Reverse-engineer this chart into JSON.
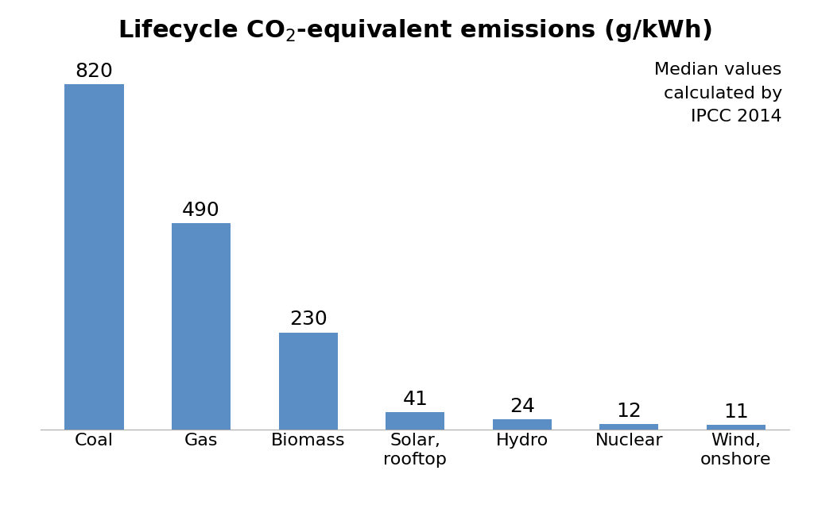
{
  "categories": [
    "Coal",
    "Gas",
    "Biomass",
    "Solar,\nrooftop",
    "Hydro",
    "Nuclear",
    "Wind,\nonshore"
  ],
  "values": [
    820,
    490,
    230,
    41,
    24,
    12,
    11
  ],
  "bar_color": "#5b8ec4",
  "title": "Lifecycle CO₂-equivalent emissions (g/kWh)",
  "title_fontsize": 22,
  "label_fontsize": 18,
  "tick_fontsize": 16,
  "ylim": [
    0,
    900
  ],
  "annotation_text": "Median values\ncalculated by\nIPCC 2014",
  "annotation_fontsize": 16,
  "background_color": "#ffffff",
  "grid_color": "#d0d0d0",
  "bar_width": 0.55
}
